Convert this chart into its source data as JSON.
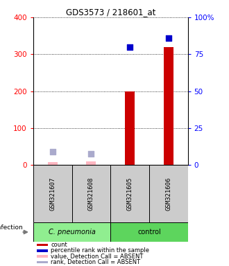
{
  "title": "GDS3573 / 218601_at",
  "samples": [
    "GSM321607",
    "GSM321608",
    "GSM321605",
    "GSM321606"
  ],
  "bar_positions": [
    1,
    2,
    3,
    4
  ],
  "count_values": [
    8,
    10,
    200,
    320
  ],
  "count_absent": [
    true,
    true,
    false,
    false
  ],
  "percentile_values_raw": [
    null,
    null,
    80,
    86
  ],
  "rank_absent_values": [
    35,
    30,
    null,
    null
  ],
  "ylim_left": [
    0,
    400
  ],
  "ylim_right": [
    0,
    100
  ],
  "yticks_left": [
    0,
    100,
    200,
    300,
    400
  ],
  "yticks_right": [
    0,
    25,
    50,
    75,
    100
  ],
  "ytick_labels_right": [
    "0",
    "25",
    "50",
    "75",
    "100%"
  ],
  "bar_width": 0.25,
  "dot_size": 30,
  "count_color": "#CC0000",
  "count_absent_color": "#FFB6C1",
  "rank_color": "#0000CC",
  "rank_absent_color": "#AAAACC",
  "cpneumonia_color": "#90EE90",
  "control_color": "#5DD55D",
  "sample_box_color": "#CCCCCC",
  "legend_colors": [
    "#CC0000",
    "#0000CC",
    "#FFB6C1",
    "#AAAACC"
  ],
  "legend_labels": [
    "count",
    "percentile rank within the sample",
    "value, Detection Call = ABSENT",
    "rank, Detection Call = ABSENT"
  ]
}
